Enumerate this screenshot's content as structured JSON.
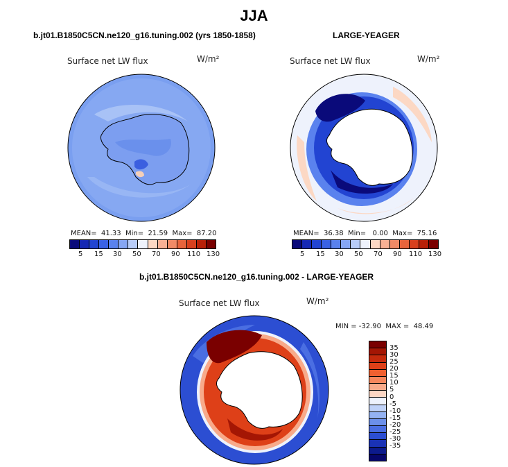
{
  "season": "JJA",
  "top_left": {
    "title": "b.jt01.B1850C5CN.ne120_g16.tuning.002 (yrs 1850-1858)",
    "variable": "Surface net LW flux",
    "units": "W/m²",
    "stats": "MEAN=  41.33  Min=  21.59  Max=  87.20",
    "colorbar_ticks": [
      "5",
      "15",
      "30",
      "50",
      "70",
      "90",
      "110",
      "130"
    ]
  },
  "top_right": {
    "title": "LARGE-YEAGER",
    "variable": "Surface net LW flux",
    "units": "W/m²",
    "stats": "MEAN=  36.38  Min=   0.00  Max=  75.16",
    "colorbar_ticks": [
      "5",
      "15",
      "30",
      "50",
      "70",
      "90",
      "110",
      "130"
    ]
  },
  "bottom": {
    "title": "b.jt01.B1850C5CN.ne120_g16.tuning.002 - LARGE-YEAGER",
    "variable": "Surface net LW flux",
    "units": "W/m²",
    "stats": "MIN = -32.90  MAX =  48.49",
    "colorbar_labels": [
      "35",
      "30",
      "25",
      "20",
      "15",
      "10",
      "5",
      "0",
      "-5",
      "-10",
      "-15",
      "-20",
      "-25",
      "-30",
      "-35"
    ]
  },
  "colors": {
    "abs_scale": [
      "#0a0a7a",
      "#1628b4",
      "#2244d2",
      "#3a62e4",
      "#5a82ee",
      "#86a6f4",
      "#b8ccf8",
      "#eef2fc",
      "#fcd8c4",
      "#f8b094",
      "#f08a66",
      "#e8643c",
      "#d8401e",
      "#b82008",
      "#7a0000"
    ],
    "diff_scale": [
      "#7a0000",
      "#a41604",
      "#c42a0c",
      "#de4018",
      "#f06030",
      "#f6865c",
      "#f8aa8a",
      "#fcd6c4",
      "#eef2fc",
      "#c0d2f8",
      "#94b2f2",
      "#6c90ea",
      "#4a6ee2",
      "#2c4ed2",
      "#1a32b6",
      "#0c1a8c",
      "#06066a"
    ]
  }
}
